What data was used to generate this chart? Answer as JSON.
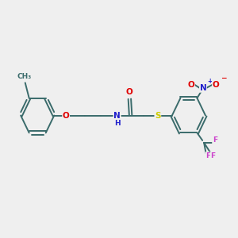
{
  "bg_color": "#efefef",
  "bond_color": "#3a6b6b",
  "bond_lw": 1.4,
  "atom_colors": {
    "O": "#e00000",
    "N": "#2020cc",
    "S": "#cccc00",
    "F": "#cc44cc",
    "C": "#3a6b6b"
  },
  "font_size_atom": 7.5,
  "font_size_small": 6.5,
  "xlim": [
    0,
    12
  ],
  "ylim": [
    0,
    10
  ]
}
